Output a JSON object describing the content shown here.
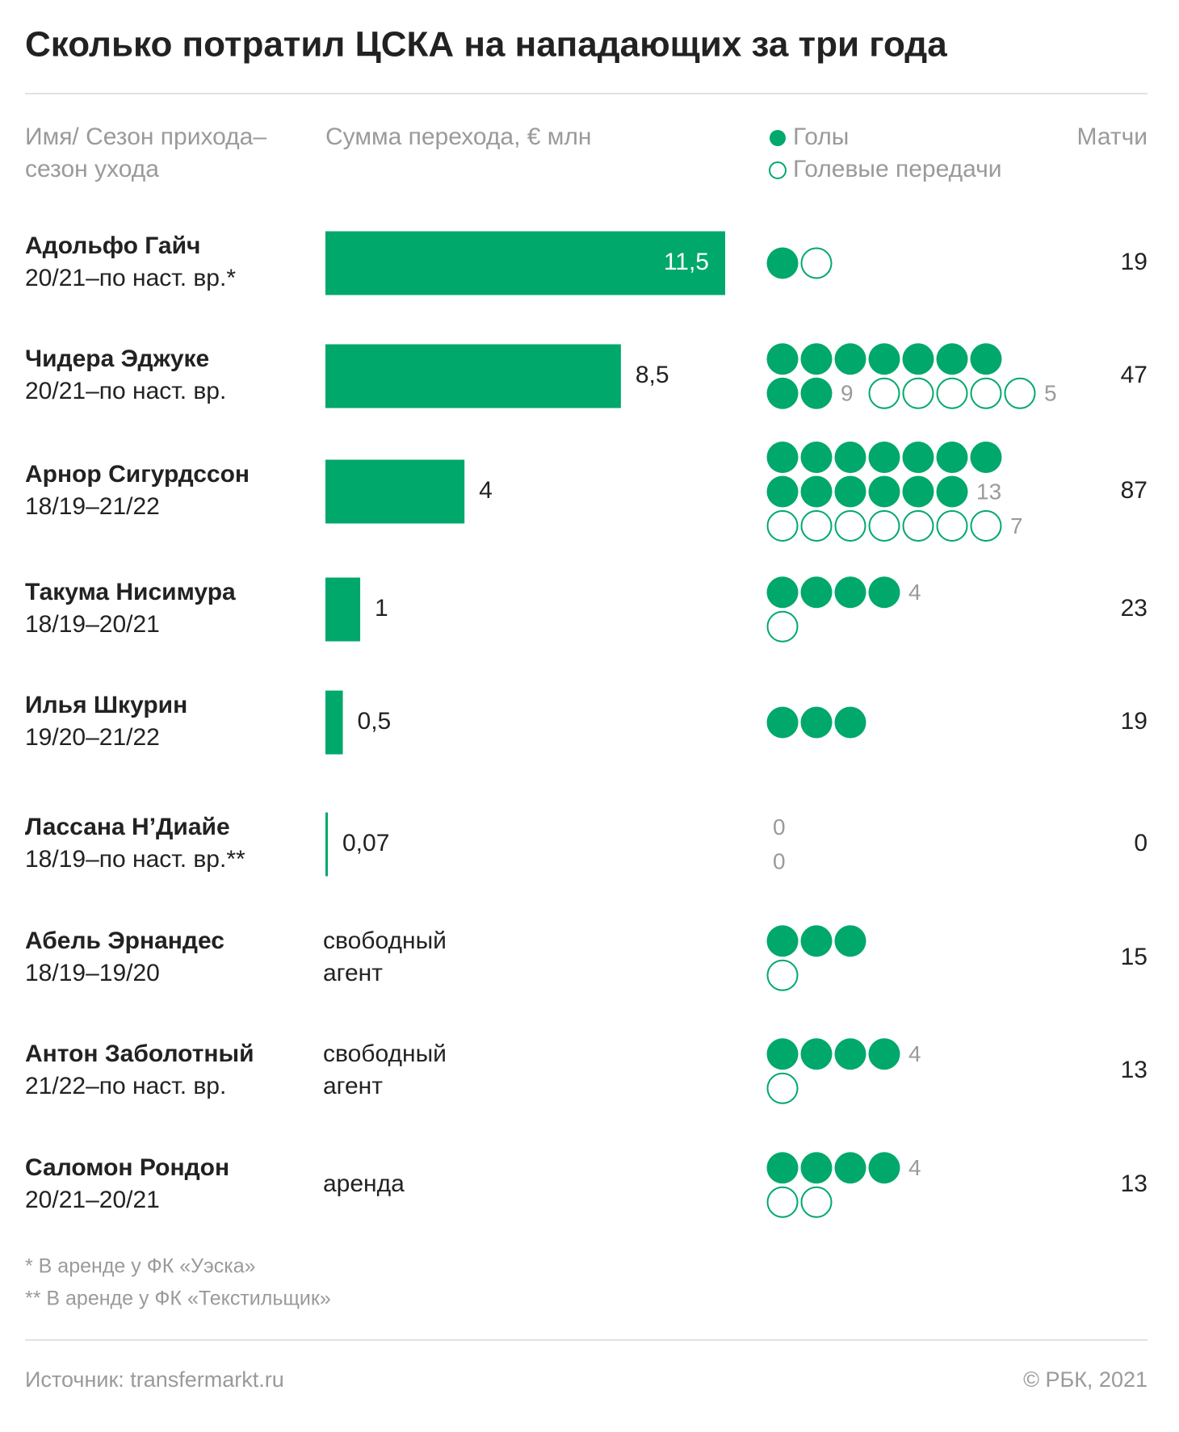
{
  "chart_data": {
    "type": "bar",
    "title": "Сколько потратил ЦСКА на нападающих за три года",
    "headers": {
      "name": [
        "Имя/ Сезон прихода–",
        "сезон ухода"
      ],
      "fee": "Сумма перехода, € млн",
      "goals": "Голы",
      "assists": "Голевые передачи",
      "matches": "Матчи"
    },
    "color": "#00a86b",
    "rows": [
      {
        "name": "Адольфо Гайч",
        "seasons": "20/21–по наст. вр.*",
        "fee": 11.5,
        "fee_label": "11,5",
        "goals": 1,
        "assists": 1,
        "matches": 19,
        "assists_inline": true
      },
      {
        "name": "Чидера Эджуке",
        "seasons": "20/21–по наст. вр.",
        "fee": 8.5,
        "fee_label": "8,5",
        "goals": 9,
        "assists": 5,
        "matches": 47,
        "goals_count_shown": true,
        "assists_count_shown": true,
        "assists_inline": true
      },
      {
        "name": "Арнор Сигурдссон",
        "seasons": "18/19–21/22",
        "fee": 4,
        "goals": 13,
        "assists": 7,
        "matches": 87,
        "goals_count_shown": true,
        "assists_count_shown": true
      },
      {
        "name": "Такума Нисимура",
        "seasons": "18/19–20/21",
        "fee": 1,
        "goals": 4,
        "assists": 1,
        "matches": 23,
        "goals_count_shown": true
      },
      {
        "name": "Илья Шкурин",
        "seasons": "19/20–21/22",
        "fee": 0.5,
        "fee_label": "0,5",
        "goals": 3,
        "assists": 0,
        "matches": 19
      },
      {
        "name": "Лассана Н’Диайе",
        "seasons": "18/19–по наст. вр.**",
        "fee": 0.07,
        "fee_label": "0,07",
        "goals": 0,
        "assists": 0,
        "matches": 0,
        "goals_count_shown": true,
        "assists_count_shown": true
      },
      {
        "name": "Абель Эрнандес",
        "seasons": "18/19–19/20",
        "fee_text": [
          "свободный",
          "агент"
        ],
        "goals": 3,
        "assists": 1,
        "matches": 15
      },
      {
        "name": "Антон Заболотный",
        "seasons": "21/22–по наст. вр.",
        "fee_text": [
          "свободный",
          "агент"
        ],
        "goals": 4,
        "assists": 1,
        "matches": 13,
        "goals_count_shown": true
      },
      {
        "name": "Саломон Рондон",
        "seasons": "20/21–20/21",
        "fee_text": [
          "аренда"
        ],
        "goals": 4,
        "assists": 2,
        "matches": 13,
        "goals_count_shown": true
      }
    ],
    "footnotes": [
      "* В аренде у ФК «Уэска»",
      "** В аренде у ФК «Текстильщик»"
    ],
    "source": "Источник: transfermarkt.ru",
    "copyright": "© РБК, 2021"
  }
}
